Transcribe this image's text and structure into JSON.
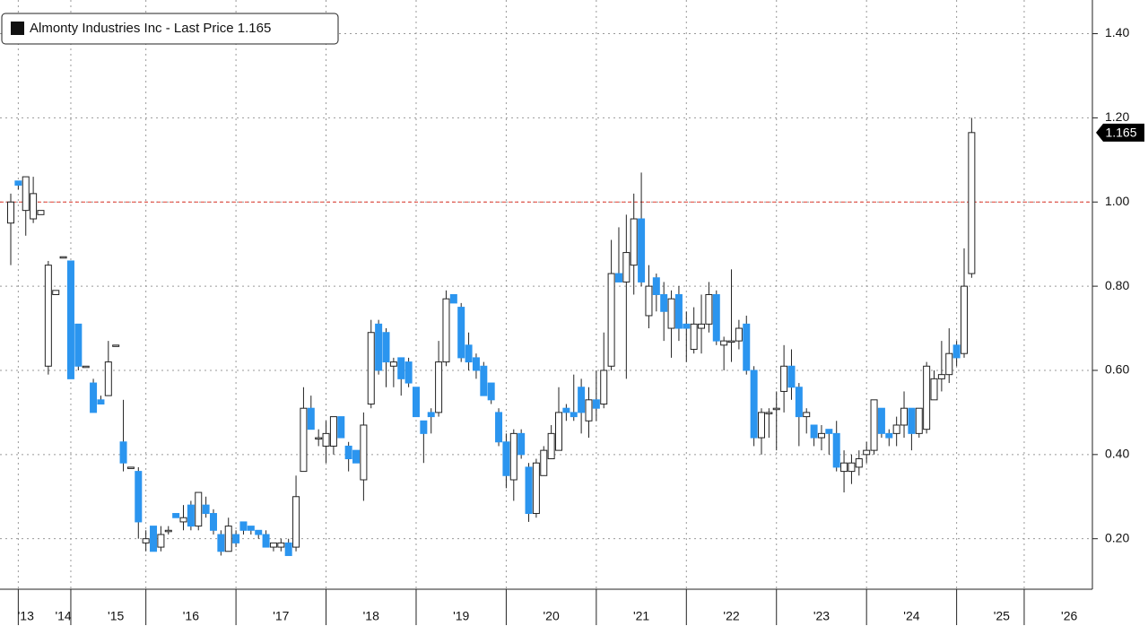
{
  "chart_data": {
    "type": "candlestick",
    "title": "Almonty Industries Inc - Last Price 1.165",
    "last_value_label": "1.165",
    "categories": [
      null,
      null,
      "'13",
      null,
      null,
      null,
      null,
      "'14",
      null,
      null,
      null,
      null,
      null,
      null,
      "'15",
      null,
      null,
      null,
      null,
      null,
      null,
      null,
      null,
      null,
      "'16",
      null,
      null,
      null,
      null,
      null,
      null,
      null,
      null,
      null,
      null,
      null,
      "'17",
      null,
      null,
      null,
      null,
      null,
      null,
      null,
      null,
      null,
      null,
      null,
      "'18",
      null,
      null,
      null,
      null,
      null,
      null,
      null,
      null,
      null,
      null,
      null,
      "'19",
      null,
      null,
      null,
      null,
      null,
      null,
      null,
      null,
      null,
      null,
      null,
      "'20",
      null,
      null,
      null,
      null,
      null,
      null,
      null,
      null,
      null,
      null,
      null,
      "'21",
      null,
      null,
      null,
      null,
      null,
      null,
      null,
      null,
      null,
      null,
      null,
      "'22",
      null,
      null,
      null,
      null,
      null,
      null,
      null,
      null,
      null,
      null,
      null,
      "'23",
      null,
      null,
      null,
      null,
      null,
      null,
      null,
      null,
      null,
      null,
      null,
      "'24",
      null,
      null,
      null,
      null,
      null,
      null,
      null,
      null,
      null,
      null,
      null,
      "'25",
      null,
      null,
      null,
      null,
      null,
      null,
      null,
      null,
      "'26"
    ],
    "open": [
      0.95,
      1.05,
      0.98,
      0.96,
      0.97,
      0.61,
      0.78,
      0.87,
      0.86,
      0.71,
      0.61,
      0.57,
      0.53,
      0.54,
      0.66,
      0.43,
      0.37,
      0.36,
      0.19,
      0.23,
      0.18,
      0.22,
      0.26,
      0.24,
      0.28,
      0.23,
      0.28,
      0.26,
      0.21,
      0.17,
      0.21,
      0.24,
      0.23,
      0.22,
      0.21,
      0.18,
      0.18,
      0.19,
      0.18,
      0.36,
      0.51,
      0.44,
      0.42,
      0.42,
      0.49,
      0.42,
      0.41,
      0.34,
      0.52,
      0.71,
      0.69,
      0.61,
      0.63,
      0.62,
      0.56,
      0.48,
      0.5,
      0.5,
      0.62,
      0.78,
      0.75,
      0.66,
      0.63,
      0.61,
      0.57,
      0.5,
      0.43,
      0.34,
      0.45,
      0.37,
      0.26,
      0.35,
      0.39,
      0.41,
      0.51,
      0.5,
      0.56,
      0.48,
      0.53,
      0.52,
      0.61,
      0.83,
      0.81,
      0.85,
      0.96,
      0.73,
      0.82,
      0.78,
      0.7,
      0.78,
      0.71,
      0.65,
      0.7,
      0.71,
      0.78,
      0.66,
      0.67,
      0.67,
      0.71,
      0.6,
      0.44,
      0.5,
      0.51,
      0.55,
      0.61,
      0.56,
      0.49,
      0.47,
      0.44,
      0.46,
      0.45,
      0.36,
      0.36,
      0.37,
      0.4,
      0.41,
      0.51,
      0.45,
      0.45,
      0.47,
      0.51,
      0.45,
      0.46,
      0.53,
      0.58,
      0.59,
      0.66,
      0.64,
      0.83,
      null,
      null,
      null,
      null,
      null,
      null,
      null,
      null,
      null,
      null,
      null,
      null,
      null
    ],
    "high": [
      1.02,
      1.05,
      1.06,
      1.06,
      0.98,
      0.86,
      0.79,
      0.87,
      0.86,
      0.71,
      0.61,
      0.58,
      0.54,
      0.67,
      0.66,
      0.53,
      0.37,
      0.37,
      0.22,
      0.23,
      0.23,
      0.23,
      0.26,
      0.28,
      0.29,
      0.31,
      0.3,
      0.27,
      0.22,
      0.25,
      0.22,
      0.24,
      0.23,
      0.22,
      0.22,
      0.19,
      0.2,
      0.2,
      0.35,
      0.56,
      0.54,
      0.46,
      0.48,
      0.49,
      0.49,
      0.43,
      0.41,
      0.5,
      0.72,
      0.72,
      0.7,
      0.63,
      0.63,
      0.63,
      0.56,
      0.48,
      0.51,
      0.67,
      0.79,
      0.78,
      0.76,
      0.69,
      0.64,
      0.62,
      0.57,
      0.51,
      0.45,
      0.46,
      0.46,
      0.38,
      0.39,
      0.42,
      0.47,
      0.56,
      0.52,
      0.59,
      0.58,
      0.56,
      0.6,
      0.69,
      0.91,
      0.94,
      0.97,
      1.02,
      1.07,
      0.85,
      0.83,
      0.81,
      0.79,
      0.8,
      0.74,
      0.75,
      0.78,
      0.81,
      0.79,
      0.68,
      0.84,
      0.72,
      0.73,
      0.61,
      0.51,
      0.51,
      0.55,
      0.66,
      0.65,
      0.57,
      0.51,
      0.47,
      0.47,
      0.46,
      0.48,
      0.41,
      0.4,
      0.41,
      0.43,
      0.53,
      0.51,
      0.46,
      0.49,
      0.55,
      0.51,
      0.51,
      0.62,
      0.6,
      0.67,
      0.7,
      0.67,
      0.89,
      1.2,
      null,
      null,
      null,
      null,
      null,
      null,
      null,
      null,
      null,
      null,
      null,
      null,
      null
    ],
    "low": [
      0.85,
      1.03,
      0.92,
      0.95,
      0.97,
      0.59,
      0.78,
      0.87,
      0.58,
      0.6,
      0.61,
      0.5,
      0.52,
      0.54,
      0.66,
      0.36,
      0.37,
      0.2,
      0.17,
      0.17,
      0.17,
      0.21,
      0.25,
      0.22,
      0.22,
      0.22,
      0.25,
      0.21,
      0.16,
      0.17,
      0.18,
      0.21,
      0.21,
      0.2,
      0.18,
      0.17,
      0.17,
      0.16,
      0.17,
      0.36,
      0.46,
      0.42,
      0.38,
      0.4,
      0.44,
      0.36,
      0.38,
      0.29,
      0.51,
      0.59,
      0.56,
      0.56,
      0.54,
      0.56,
      0.49,
      0.38,
      0.45,
      0.49,
      0.61,
      0.76,
      0.62,
      0.6,
      0.58,
      0.54,
      0.52,
      0.42,
      0.32,
      0.29,
      0.39,
      0.24,
      0.25,
      0.35,
      0.39,
      0.41,
      0.48,
      0.48,
      0.45,
      0.44,
      0.48,
      0.51,
      0.6,
      0.81,
      0.58,
      0.78,
      0.8,
      0.7,
      0.74,
      0.67,
      0.63,
      0.67,
      0.62,
      0.64,
      0.64,
      0.69,
      0.66,
      0.6,
      0.62,
      0.65,
      0.59,
      0.42,
      0.4,
      0.44,
      0.41,
      0.5,
      0.53,
      0.42,
      0.45,
      0.42,
      0.41,
      0.4,
      0.36,
      0.31,
      0.33,
      0.35,
      0.38,
      0.4,
      0.44,
      0.42,
      0.42,
      0.44,
      0.41,
      0.44,
      0.45,
      0.53,
      0.55,
      0.57,
      0.61,
      0.63,
      0.82,
      null,
      null,
      null,
      null,
      null,
      null,
      null,
      null,
      null,
      null,
      null,
      null,
      null
    ],
    "close": [
      1.0,
      1.04,
      1.06,
      1.02,
      0.98,
      0.85,
      0.79,
      0.87,
      0.58,
      0.61,
      0.61,
      0.5,
      0.52,
      0.62,
      0.66,
      0.38,
      0.37,
      0.24,
      0.2,
      0.17,
      0.21,
      0.22,
      0.25,
      0.25,
      0.23,
      0.31,
      0.26,
      0.22,
      0.17,
      0.23,
      0.19,
      0.22,
      0.22,
      0.21,
      0.18,
      0.19,
      0.19,
      0.16,
      0.3,
      0.51,
      0.46,
      0.44,
      0.45,
      0.49,
      0.44,
      0.39,
      0.38,
      0.47,
      0.69,
      0.6,
      0.62,
      0.62,
      0.58,
      0.57,
      0.49,
      0.45,
      0.49,
      0.62,
      0.77,
      0.76,
      0.63,
      0.62,
      0.6,
      0.54,
      0.53,
      0.43,
      0.35,
      0.45,
      0.4,
      0.26,
      0.38,
      0.41,
      0.45,
      0.5,
      0.5,
      0.49,
      0.5,
      0.53,
      0.51,
      0.6,
      0.83,
      0.81,
      0.88,
      0.96,
      0.81,
      0.8,
      0.78,
      0.74,
      0.77,
      0.7,
      0.7,
      0.71,
      0.71,
      0.78,
      0.67,
      0.67,
      0.67,
      0.7,
      0.6,
      0.44,
      0.5,
      0.5,
      0.51,
      0.61,
      0.56,
      0.49,
      0.5,
      0.44,
      0.45,
      0.45,
      0.37,
      0.38,
      0.38,
      0.39,
      0.41,
      0.53,
      0.45,
      0.44,
      0.47,
      0.51,
      0.45,
      0.51,
      0.61,
      0.58,
      0.59,
      0.64,
      0.63,
      0.8,
      1.165,
      null,
      null,
      null,
      null,
      null,
      null,
      null,
      null,
      null,
      null,
      null,
      null,
      null
    ],
    "up_color": "#ffffff",
    "down_color": "#2b95ef",
    "reference_line": 1.0,
    "reference_color": "#e23a2e",
    "ylim": [
      0.08,
      1.48
    ],
    "yticks": [
      {
        "value": 0.2,
        "label": "0.20"
      },
      {
        "value": 0.4,
        "label": "0.40"
      },
      {
        "value": 0.6,
        "label": "0.60"
      },
      {
        "value": 0.8,
        "label": "0.80"
      },
      {
        "value": 1.0,
        "label": "1.00"
      },
      {
        "value": 1.2,
        "label": "1.20"
      },
      {
        "value": 1.4,
        "label": "1.40"
      }
    ],
    "grid": true
  }
}
